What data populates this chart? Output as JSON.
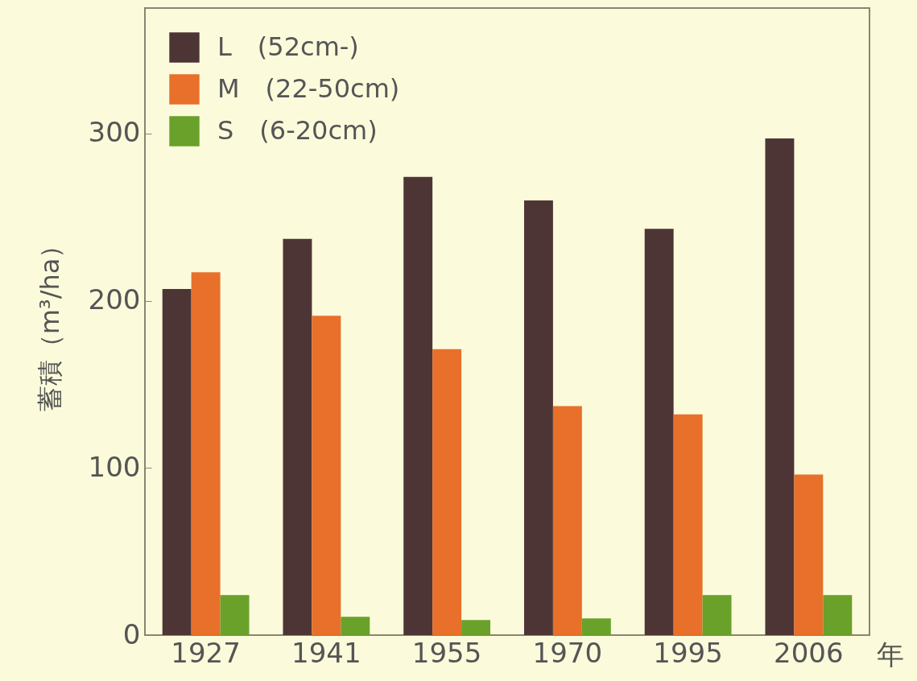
{
  "chart_data": {
    "type": "bar",
    "xlabel": "年",
    "ylabel": "蓄積（m³/ha）",
    "categories": [
      "1927",
      "1941",
      "1955",
      "1970",
      "1995",
      "2006"
    ],
    "series": [
      {
        "name": "L　(52cm-)",
        "color": "#4e3535",
        "values": [
          207,
          237,
          274,
          260,
          243,
          297
        ]
      },
      {
        "name": "M　(22-50cm)",
        "color": "#e8702a",
        "values": [
          217,
          191,
          171,
          137,
          132,
          96
        ]
      },
      {
        "name": "S　(6-20cm)",
        "color": "#6aa12a",
        "values": [
          24,
          11,
          9,
          10,
          24,
          24
        ]
      }
    ],
    "ylim": [
      0,
      375
    ],
    "yticks": [
      0,
      100,
      200,
      300
    ],
    "grid": false,
    "legend": "top left"
  }
}
